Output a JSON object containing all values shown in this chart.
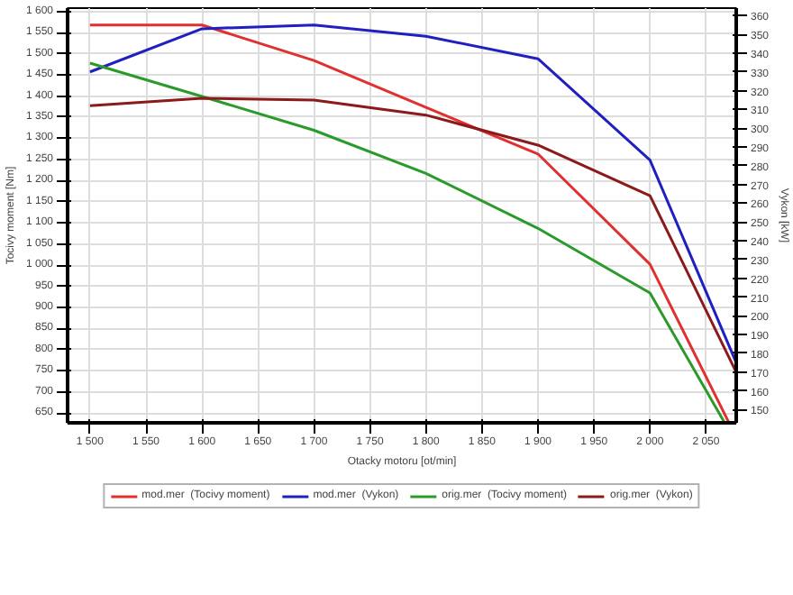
{
  "chart_data": {
    "type": "line",
    "xlabel": "Otacky motoru [ot/min]",
    "ylabel": "Tocivy moment [Nm]",
    "y2label": "Vykon [kW]",
    "xlim": [
      1480,
      2077
    ],
    "ylim": [
      627,
      1608
    ],
    "y2lim": [
      143,
      364
    ],
    "xticks": [
      {
        "value": 1500,
        "label": "1 500"
      },
      {
        "value": 1550,
        "label": "1 550"
      },
      {
        "value": 1600,
        "label": "1 600"
      },
      {
        "value": 1650,
        "label": "1 650"
      },
      {
        "value": 1700,
        "label": "1 700"
      },
      {
        "value": 1750,
        "label": "1 750"
      },
      {
        "value": 1800,
        "label": "1 800"
      },
      {
        "value": 1850,
        "label": "1 850"
      },
      {
        "value": 1900,
        "label": "1 900"
      },
      {
        "value": 1950,
        "label": "1 950"
      },
      {
        "value": 2000,
        "label": "2 000"
      },
      {
        "value": 2050,
        "label": "2 050"
      }
    ],
    "yticks": [
      650,
      700,
      750,
      800,
      850,
      900,
      950,
      {
        "value": 1000,
        "label": "1 000"
      },
      {
        "value": 1050,
        "label": "1 050"
      },
      {
        "value": 1100,
        "label": "1 100"
      },
      {
        "value": 1150,
        "label": "1 150"
      },
      {
        "value": 1200,
        "label": "1 200"
      },
      {
        "value": 1250,
        "label": "1 250"
      },
      {
        "value": 1300,
        "label": "1 300"
      },
      {
        "value": 1350,
        "label": "1 350"
      },
      {
        "value": 1400,
        "label": "1 400"
      },
      {
        "value": 1450,
        "label": "1 450"
      },
      {
        "value": 1500,
        "label": "1 500"
      },
      {
        "value": 1550,
        "label": "1 550"
      },
      {
        "value": 1600,
        "label": "1 600"
      }
    ],
    "y2ticks": [
      150,
      160,
      170,
      180,
      190,
      200,
      210,
      220,
      230,
      240,
      250,
      260,
      270,
      280,
      290,
      300,
      310,
      320,
      330,
      340,
      350,
      360
    ],
    "grid": true,
    "legend": "bottom",
    "marker": "none",
    "line_style": "solid",
    "series": [
      {
        "name": "mod.mer  (Tocivy moment)",
        "color": "#e03030",
        "x": [
          1500,
          1600,
          1700,
          1800,
          1900,
          2000,
          2070
        ],
        "values": [
          1568,
          1568,
          1484,
          1373,
          1263,
          1002,
          630
        ]
      },
      {
        "name": "mod.mer  (Vykon)",
        "color": "#2020c0",
        "axis": "y2",
        "x": [
          1500,
          1600,
          1700,
          1800,
          1900,
          2000,
          2077
        ],
        "values": [
          330,
          353,
          355,
          349,
          337,
          283,
          175
        ]
      },
      {
        "name": "orig.mer  (Tocivy moment)",
        "color": "#2a9a2a",
        "x": [
          1500,
          1600,
          1700,
          1800,
          1900,
          2000,
          2066
        ],
        "values": [
          1478,
          1399,
          1319,
          1217,
          1087,
          934,
          630
        ]
      },
      {
        "name": "orig.mer  (Vykon)",
        "color": "#8b1a1a",
        "axis": "y2",
        "x": [
          1500,
          1600,
          1700,
          1800,
          1900,
          2000,
          2077
        ],
        "values": [
          312,
          316,
          315,
          307,
          291,
          264,
          170
        ]
      }
    ]
  }
}
